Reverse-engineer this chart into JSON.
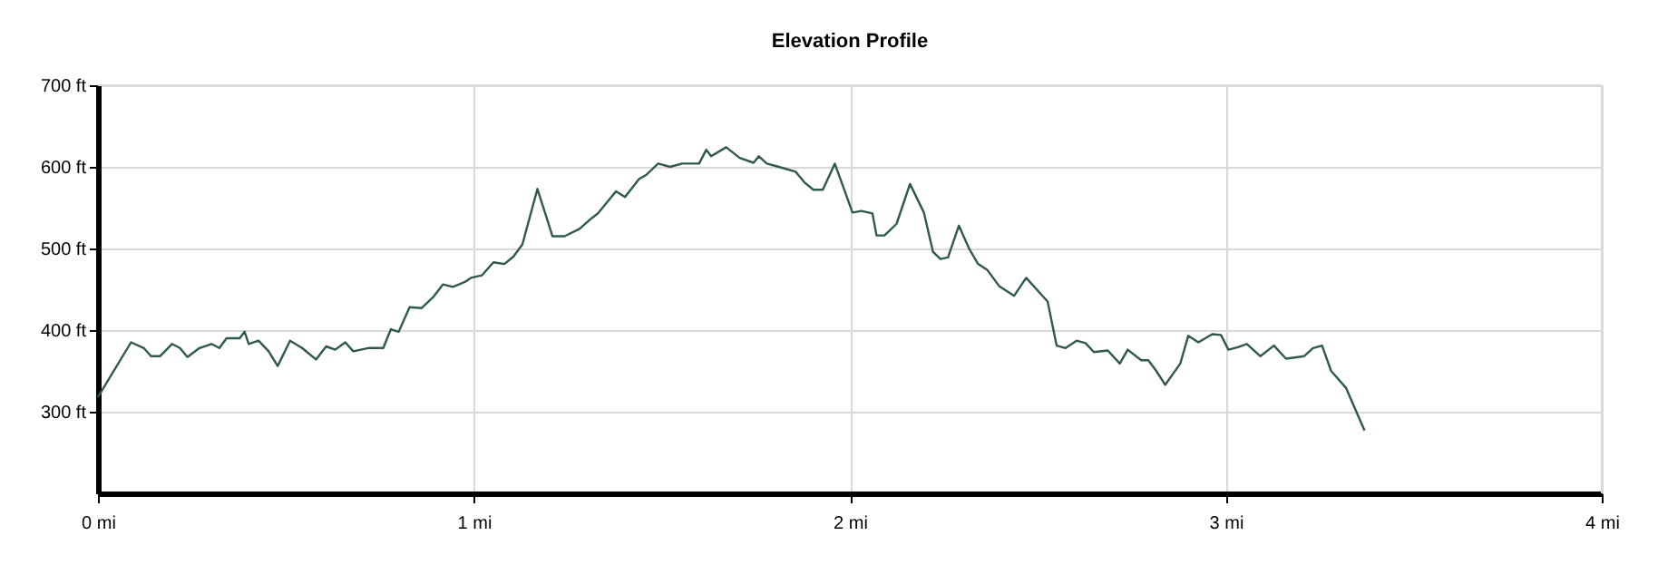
{
  "chart_data": {
    "type": "line",
    "title": "Elevation Profile",
    "x": [
      0,
      0.088,
      0.122,
      0.141,
      0.165,
      0.197,
      0.218,
      0.238,
      0.27,
      0.302,
      0.323,
      0.342,
      0.377,
      0.39,
      0.401,
      0.427,
      0.454,
      0.478,
      0.511,
      0.543,
      0.58,
      0.607,
      0.631,
      0.658,
      0.679,
      0.719,
      0.759,
      0.779,
      0.8,
      0.829,
      0.861,
      0.893,
      0.918,
      0.944,
      0.976,
      0.992,
      1.021,
      1.052,
      1.081,
      1.105,
      1.129,
      1.169,
      1.209,
      1.241,
      1.281,
      1.313,
      1.33,
      1.378,
      1.402,
      1.439,
      1.458,
      1.49,
      1.522,
      1.554,
      1.599,
      1.618,
      1.631,
      1.671,
      1.707,
      1.744,
      1.758,
      1.779,
      1.811,
      1.856,
      1.879,
      1.903,
      1.928,
      1.96,
      2.007,
      2.031,
      2.06,
      2.071,
      2.092,
      2.124,
      2.16,
      2.197,
      2.221,
      2.241,
      2.261,
      2.29,
      2.317,
      2.341,
      2.365,
      2.397,
      2.437,
      2.469,
      2.526,
      2.55,
      2.574,
      2.603,
      2.627,
      2.649,
      2.686,
      2.718,
      2.739,
      2.775,
      2.794,
      2.815,
      2.839,
      2.879,
      2.9,
      2.927,
      2.964,
      2.987,
      3.007,
      3.032,
      3.056,
      3.092,
      3.128,
      3.16,
      3.192,
      3.208,
      3.232,
      3.256,
      3.28,
      3.32,
      3.369
    ],
    "series": [
      {
        "color": "#2f5a46",
        "values": [
          318,
          385,
          378,
          368,
          368,
          383,
          378,
          367,
          378,
          383,
          378,
          390,
          390,
          398,
          383,
          387,
          374,
          356,
          387,
          378,
          364,
          380,
          376,
          385,
          374,
          378,
          378,
          401,
          398,
          428,
          427,
          441,
          456,
          453,
          459,
          464,
          467,
          483,
          481,
          490,
          505,
          573,
          515,
          515,
          524,
          537,
          543,
          570,
          563,
          585,
          590,
          604,
          600,
          604,
          604,
          621,
          613,
          624,
          611,
          605,
          613,
          604,
          600,
          594,
          581,
          572,
          572,
          604,
          544,
          546,
          543,
          516,
          516,
          530,
          579,
          544,
          496,
          487,
          489,
          528,
          500,
          481,
          474,
          454,
          442,
          464,
          435,
          381,
          378,
          387,
          384,
          373,
          375,
          359,
          376,
          363,
          363,
          350,
          333,
          359,
          393,
          385,
          395,
          394,
          376,
          379,
          383,
          368,
          381,
          365,
          367,
          368,
          378,
          381,
          350,
          329,
          277
        ]
      }
    ],
    "xlim": [
      0,
      4
    ],
    "ylim": [
      200,
      700
    ],
    "xticks": [
      {
        "value": 0,
        "label": "0 mi"
      },
      {
        "value": 1,
        "label": "1 mi"
      },
      {
        "value": 2,
        "label": "2 mi"
      },
      {
        "value": 3,
        "label": "3 mi"
      },
      {
        "value": 4,
        "label": "4 mi"
      }
    ],
    "yticks": [
      {
        "value": 300,
        "label": "300 ft"
      },
      {
        "value": 400,
        "label": "400 ft"
      },
      {
        "value": 500,
        "label": "500 ft"
      },
      {
        "value": 600,
        "label": "600 ft"
      },
      {
        "value": 700,
        "label": "700 ft"
      }
    ],
    "grid": true,
    "marker": "none",
    "line_style": "solid"
  }
}
